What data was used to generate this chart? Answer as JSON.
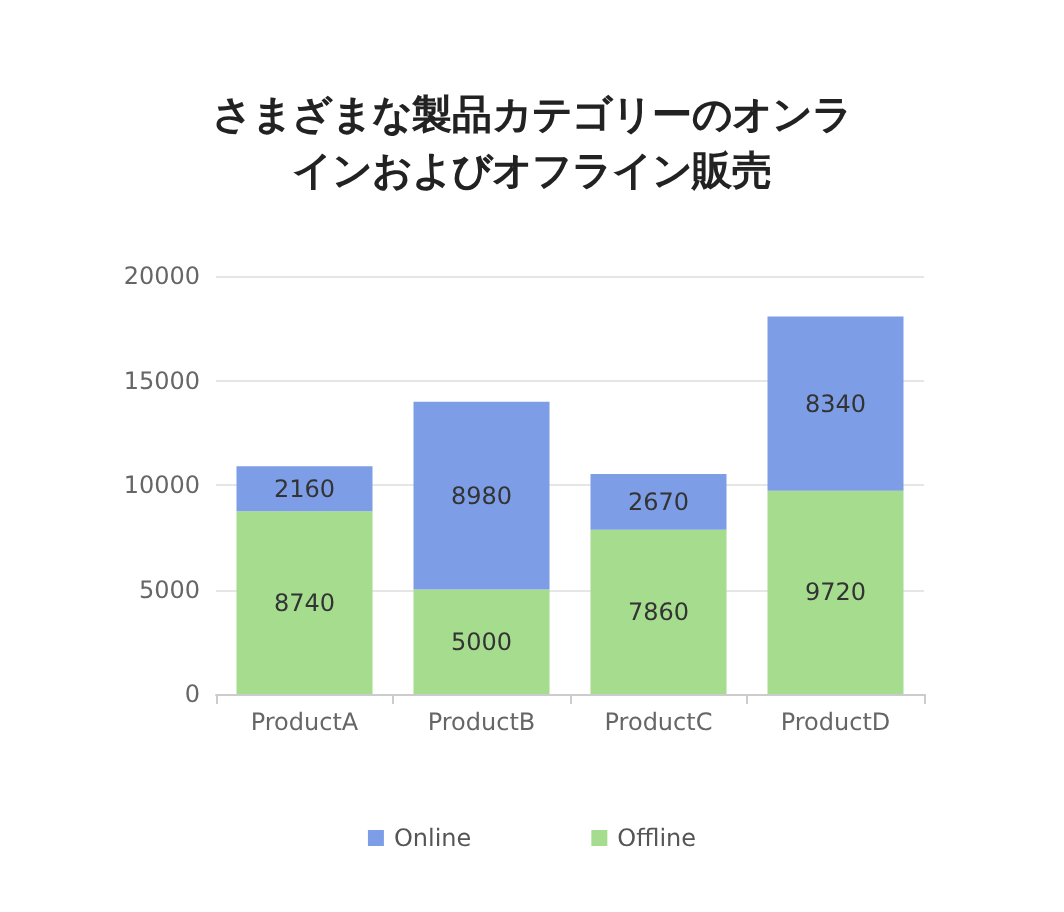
{
  "chart_data": {
    "type": "bar",
    "title": "さまざまな製品カテゴリーのオンラインおよびオフライン販売",
    "categories": [
      "ProductA",
      "ProductB",
      "ProductC",
      "ProductD"
    ],
    "stacked": true,
    "series": [
      {
        "name": "Offline",
        "color": "#a5dc8e",
        "values": [
          8740,
          5000,
          7860,
          9720
        ]
      },
      {
        "name": "Online",
        "color": "#7d9ee6",
        "values": [
          2160,
          8980,
          2670,
          8340
        ]
      }
    ],
    "ylim": [
      0,
      20000
    ],
    "yticks": [
      0,
      5000,
      10000,
      15000,
      20000
    ],
    "grid": "y",
    "legend": "bottom",
    "data_labels": true
  }
}
